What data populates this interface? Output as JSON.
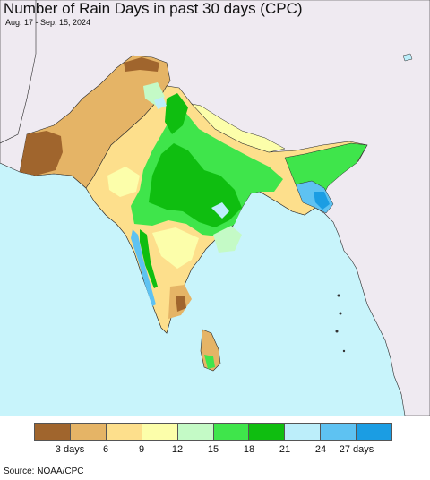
{
  "title": "Number of Rain Days in past 30 days (CPC)",
  "subtitle": "Aug. 17 - Sep. 15, 2024",
  "source": "Source: NOAA/CPC",
  "colors": {
    "ocean": "#c8f4fb",
    "land_outside": "#efeaf1",
    "border": "#2b2b2b"
  },
  "legend": {
    "colors": [
      "#a0652d",
      "#e5b466",
      "#fddf8c",
      "#fcfeaa",
      "#c4fac6",
      "#3fe54b",
      "#0fbe10",
      "#bceefa",
      "#5ec2f2",
      "#1b9de3"
    ],
    "labels": [
      "3 days",
      "6",
      "9",
      "12",
      "15",
      "18",
      "21",
      "24",
      "27 days"
    ]
  }
}
